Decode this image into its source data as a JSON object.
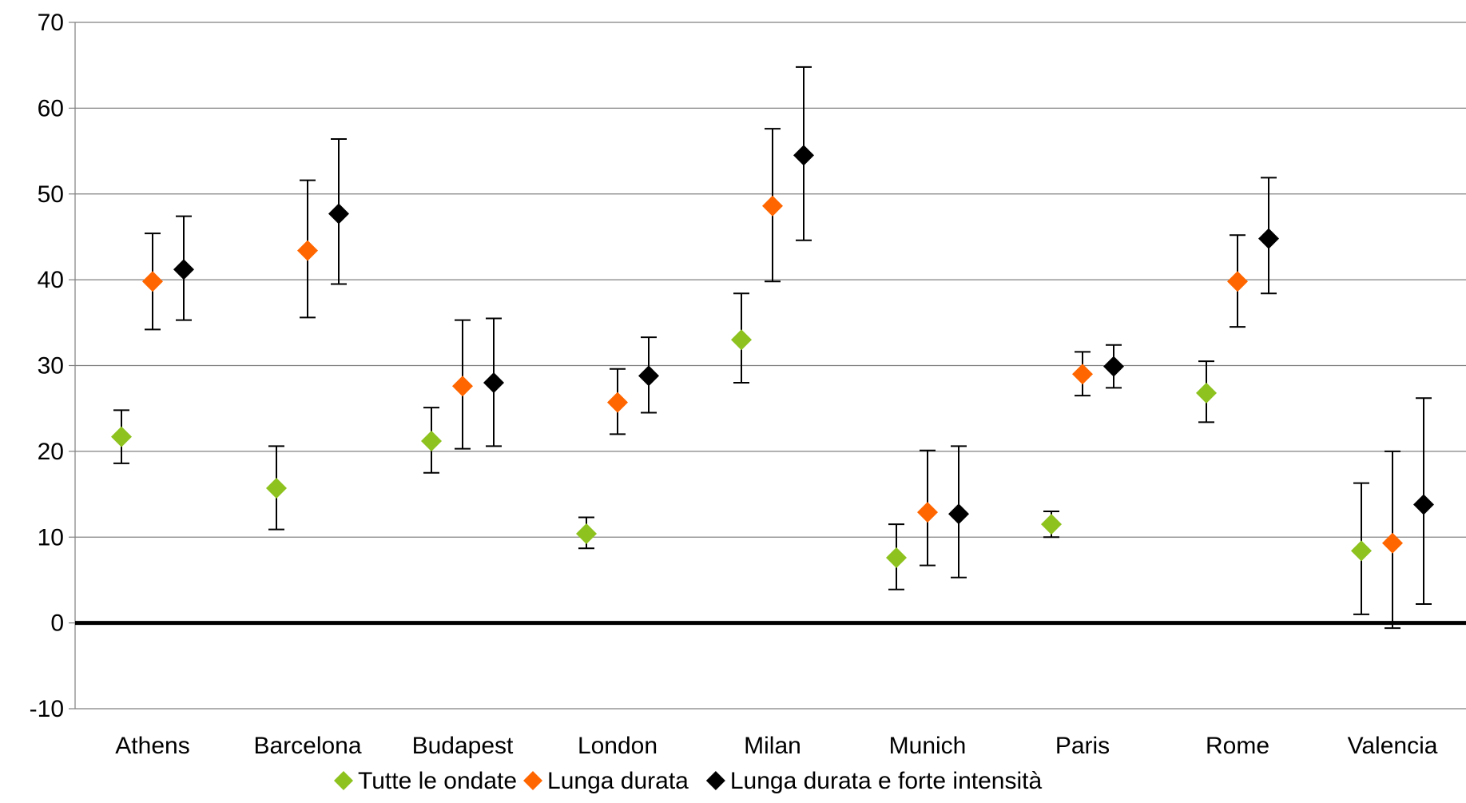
{
  "chart_data": {
    "type": "scatter",
    "subtype": "point-with-error-bars",
    "title": "",
    "xlabel": "",
    "ylabel": "",
    "ylim": [
      -10,
      70
    ],
    "yticks": [
      -10,
      0,
      10,
      20,
      30,
      40,
      50,
      60,
      70
    ],
    "grid": "horizontal",
    "legend_position": "bottom",
    "categories": [
      "Athens",
      "Barcelona",
      "Budapest",
      "London",
      "Milan",
      "Munich",
      "Paris",
      "Rome",
      "Valencia"
    ],
    "series": [
      {
        "name": "Tutte le ondate",
        "color": "#8DC21F",
        "marker": "diamond",
        "values": [
          21.7,
          15.7,
          21.2,
          10.4,
          33.0,
          7.6,
          11.5,
          26.8,
          8.4
        ],
        "lower": [
          18.6,
          10.9,
          17.5,
          8.7,
          28.0,
          3.9,
          10.0,
          23.4,
          1.0
        ],
        "upper": [
          24.8,
          20.6,
          25.1,
          12.3,
          38.4,
          11.5,
          13.0,
          30.5,
          16.3
        ]
      },
      {
        "name": "Lunga durata",
        "color": "#FF6600",
        "marker": "diamond",
        "values": [
          39.8,
          43.4,
          27.6,
          25.7,
          48.6,
          12.9,
          29.0,
          39.8,
          9.3
        ],
        "lower": [
          34.2,
          35.6,
          20.3,
          22.0,
          39.8,
          6.7,
          26.5,
          34.5,
          -0.6
        ],
        "upper": [
          45.4,
          51.6,
          35.3,
          29.6,
          57.6,
          20.1,
          31.6,
          45.2,
          20.0
        ]
      },
      {
        "name": "Lunga durata e forte intensità",
        "color": "#000000",
        "marker": "diamond",
        "values": [
          41.2,
          47.7,
          28.0,
          28.8,
          54.5,
          12.7,
          29.9,
          44.8,
          13.8
        ],
        "lower": [
          35.3,
          39.5,
          20.6,
          24.5,
          44.6,
          5.3,
          27.4,
          38.4,
          2.2
        ],
        "upper": [
          47.4,
          56.4,
          35.5,
          33.3,
          64.8,
          20.6,
          32.4,
          51.9,
          26.2
        ]
      }
    ]
  }
}
